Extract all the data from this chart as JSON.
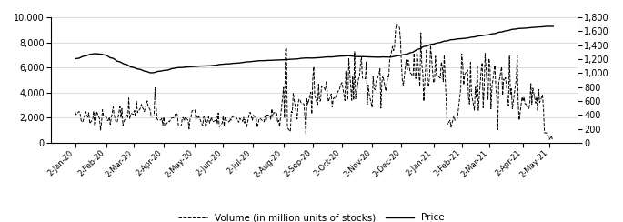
{
  "left_ylim": [
    0,
    10000
  ],
  "right_ylim": [
    0,
    1800
  ],
  "left_yticks": [
    0,
    2000,
    4000,
    6000,
    8000,
    10000
  ],
  "right_yticks": [
    0,
    200,
    400,
    600,
    800,
    1000,
    1200,
    1400,
    1600,
    1800
  ],
  "xtick_labels": [
    "2-Jan-20",
    "2-Feb-20",
    "2-Mar-20",
    "2-Apr-20",
    "2-May-20",
    "2-Jun-20",
    "2-Jul-20",
    "2-Aug-20",
    "2-Sep-20",
    "2-Oct-20",
    "2-Nov-20",
    "2-Dec-20",
    "2-Jan-21",
    "2-Feb-21",
    "2-Mar-21",
    "2-Apr-21",
    "2-May-21"
  ],
  "volume_color": "#000000",
  "price_color": "#000000",
  "background_color": "#ffffff",
  "legend_volume": "Volume (in million units of stocks)",
  "legend_price": "Price",
  "figsize": [
    6.85,
    2.44
  ],
  "dpi": 100
}
